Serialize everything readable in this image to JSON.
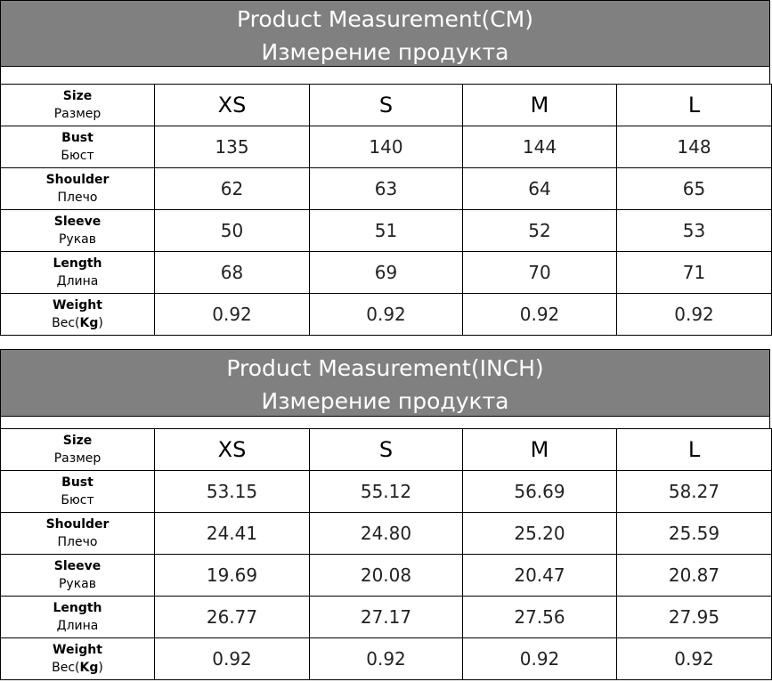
{
  "tables": [
    {
      "title": "Product Measurement(CM)",
      "subtitle": "Измерение продукта",
      "sizes": [
        "XS",
        "S",
        "M",
        "L"
      ],
      "size_label": {
        "en": "Size",
        "ru": "Размер"
      },
      "rows": [
        {
          "en": "Bust",
          "ru": "Бюст",
          "values": [
            "135",
            "140",
            "144",
            "148"
          ]
        },
        {
          "en": "Shoulder",
          "ru": "Плечо",
          "values": [
            "62",
            "63",
            "64",
            "65"
          ]
        },
        {
          "en": "Sleeve",
          "ru": "Рукав",
          "values": [
            "50",
            "51",
            "52",
            "53"
          ]
        },
        {
          "en": "Length",
          "ru": "Длина",
          "values": [
            "68",
            "69",
            "70",
            "71"
          ]
        },
        {
          "en": "Weight",
          "ru": "Вес(",
          "unit": "Kg",
          "close": ")",
          "values": [
            "0.92",
            "0.92",
            "0.92",
            "0.92"
          ]
        }
      ]
    },
    {
      "title": "Product Measurement(INCH)",
      "subtitle": "Измерение продукта",
      "sizes": [
        "XS",
        "S",
        "M",
        "L"
      ],
      "size_label": {
        "en": "Size",
        "ru": "Размер"
      },
      "rows": [
        {
          "en": "Bust",
          "ru": "Бюст",
          "values": [
            "53.15",
            "55.12",
            "56.69",
            "58.27"
          ]
        },
        {
          "en": "Shoulder",
          "ru": "Плечо",
          "values": [
            "24.41",
            "24.80",
            "25.20",
            "25.59"
          ]
        },
        {
          "en": "Sleeve",
          "ru": "Рукав",
          "values": [
            "19.69",
            "20.08",
            "20.47",
            "20.87"
          ]
        },
        {
          "en": "Length",
          "ru": "Длина",
          "values": [
            "26.77",
            "27.17",
            "27.56",
            "27.95"
          ]
        },
        {
          "en": "Weight",
          "ru": "Вес(",
          "unit": "Kg",
          "close": ")",
          "values": [
            "0.92",
            "0.92",
            "0.92",
            "0.92"
          ]
        }
      ]
    }
  ]
}
